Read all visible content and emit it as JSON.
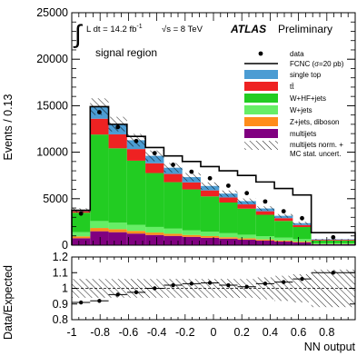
{
  "chart_data": [
    {
      "type": "bar",
      "stacked": true,
      "title": "",
      "xlabel": "",
      "ylabel": "Events / 0.13",
      "xlim": [
        -1,
        1
      ],
      "ylim": [
        0,
        25000
      ],
      "yticks": [
        "0",
        "5000",
        "10000",
        "15000",
        "20000",
        "25000"
      ],
      "bin_edges": [
        -1.0,
        -0.87,
        -0.74,
        -0.61,
        -0.48,
        -0.35,
        -0.22,
        -0.09,
        0.04,
        0.17,
        0.3,
        0.43,
        0.56,
        0.69,
        1.0
      ],
      "stack_order": [
        "multijets",
        "Z+jets, diboson",
        "W+jets",
        "W+HF+jets",
        "ttbar",
        "single top"
      ],
      "series": [
        {
          "name": "multijets",
          "color": "#800080",
          "values": [
            750,
            1500,
            1400,
            1250,
            1100,
            1000,
            900,
            800,
            700,
            600,
            500,
            400,
            300,
            100
          ]
        },
        {
          "name": "Z+jets, diboson",
          "color": "#ff8c1a",
          "values": [
            200,
            350,
            320,
            290,
            260,
            230,
            200,
            180,
            160,
            140,
            120,
            100,
            80,
            20
          ]
        },
        {
          "name": "W+jets",
          "color": "#66ee66",
          "values": [
            450,
            750,
            700,
            650,
            600,
            550,
            500,
            470,
            430,
            390,
            350,
            310,
            270,
            80
          ]
        },
        {
          "name": "W+HF+jets",
          "color": "#22cc22",
          "values": [
            2100,
            9300,
            8000,
            6900,
            5800,
            5000,
            4400,
            3800,
            3300,
            2800,
            2300,
            1800,
            1300,
            300
          ]
        },
        {
          "name": "ttbar",
          "color": "#ee2222",
          "values": [
            150,
            1700,
            1500,
            1250,
            1050,
            880,
            750,
            640,
            540,
            460,
            380,
            300,
            220,
            80
          ]
        },
        {
          "name": "single top",
          "color": "#4b9cd3",
          "values": [
            100,
            1300,
            1100,
            950,
            800,
            670,
            570,
            480,
            420,
            350,
            300,
            250,
            200,
            60
          ]
        }
      ],
      "fcnc_total": [
        3750,
        14900,
        13000,
        11700,
        10500,
        9600,
        9000,
        8450,
        8000,
        7500,
        6800,
        6100,
        5400,
        1350
      ],
      "data_points": [
        {
          "x": -0.935,
          "y": 3400
        },
        {
          "x": -0.805,
          "y": 14300
        },
        {
          "x": -0.675,
          "y": 12700
        },
        {
          "x": -0.545,
          "y": 11200
        },
        {
          "x": -0.415,
          "y": 9900
        },
        {
          "x": -0.285,
          "y": 8650
        },
        {
          "x": -0.155,
          "y": 7900
        },
        {
          "x": -0.025,
          "y": 7200
        },
        {
          "x": 0.105,
          "y": 6400
        },
        {
          "x": 0.235,
          "y": 5600
        },
        {
          "x": 0.365,
          "y": 4700
        },
        {
          "x": 0.495,
          "y": 3650
        },
        {
          "x": 0.625,
          "y": 2900
        },
        {
          "x": 0.845,
          "y": 850
        }
      ],
      "legend_position": "top-right",
      "legend": {
        "data": "data",
        "fcnc": "FCNC (σ=20 pb)",
        "single_top": "single top",
        "ttbar": "tt̄",
        "w_hf_jets": "W+HF+jets",
        "w_jets": "W+jets",
        "z_diboson": "Z+jets, diboson",
        "multijets": "multijets",
        "uncert_line1": "multijets norm. +",
        "uncert_line2": "MC stat. uncert."
      },
      "annotations": {
        "lumi_prefix": "L dt = 14.2 fb",
        "lumi_exp": "-1",
        "sqrt_s": "√s = 8 TeV",
        "atlas": "ATLAS",
        "preliminary": "Preliminary",
        "region": "signal region"
      }
    },
    {
      "type": "scatter",
      "title": "",
      "xlabel": "NN output",
      "ylabel": "Data/Expected",
      "xlim": [
        -1,
        1
      ],
      "ylim": [
        0.8,
        1.2
      ],
      "xticks": [
        "-1",
        "-0.8",
        "-0.6",
        "-0.4",
        "-0.2",
        "0",
        "0.2",
        "0.4",
        "0.6",
        "0.8"
      ],
      "yticks": [
        "0.8",
        "0.9",
        "1",
        "1.1",
        "1.2"
      ],
      "ratio_points": [
        {
          "x": -0.935,
          "y": 0.91
        },
        {
          "x": -0.805,
          "y": 0.92
        },
        {
          "x": -0.675,
          "y": 0.96
        },
        {
          "x": -0.545,
          "y": 0.975
        },
        {
          "x": -0.415,
          "y": 1.0
        },
        {
          "x": -0.285,
          "y": 1.02
        },
        {
          "x": -0.155,
          "y": 1.03
        },
        {
          "x": -0.025,
          "y": 1.035
        },
        {
          "x": 0.105,
          "y": 1.02
        },
        {
          "x": 0.235,
          "y": 1.01
        },
        {
          "x": 0.365,
          "y": 1.03
        },
        {
          "x": 0.495,
          "y": 1.04
        },
        {
          "x": 0.625,
          "y": 1.06
        },
        {
          "x": 0.845,
          "y": 1.1
        }
      ],
      "uncertainty_frac": [
        0.06,
        0.06,
        0.06,
        0.06,
        0.06,
        0.06,
        0.06,
        0.06,
        0.06,
        0.06,
        0.07,
        0.08,
        0.09,
        0.12
      ],
      "reference_line": 1
    }
  ]
}
